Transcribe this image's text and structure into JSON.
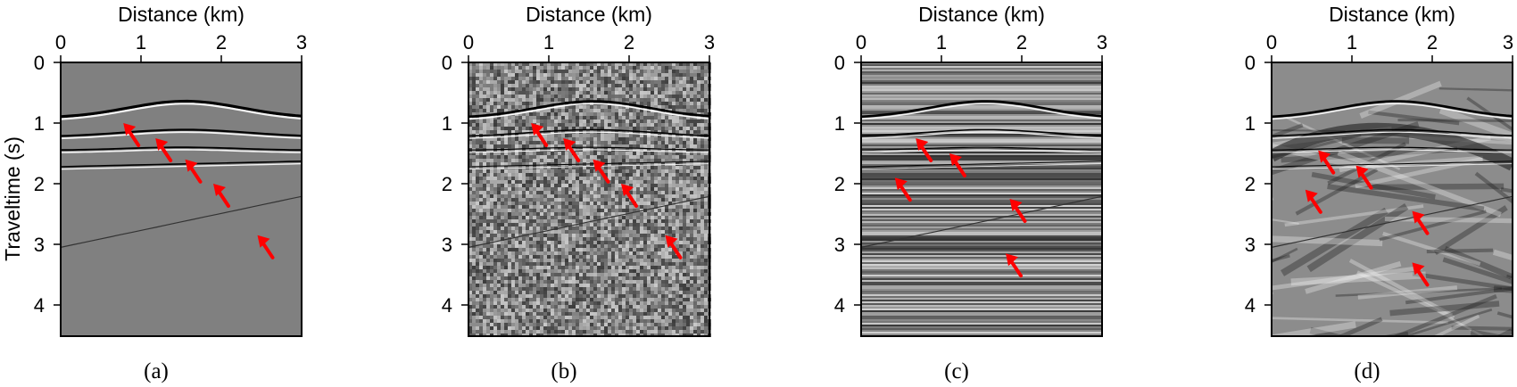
{
  "figure": {
    "x_axis_title": "Distance (km)",
    "y_axis_title": "Traveltime (s)",
    "x_ticks": [
      "0",
      "1",
      "2",
      "3"
    ],
    "y_ticks": [
      "0",
      "1",
      "2",
      "3",
      "4"
    ],
    "x_range_km": [
      0,
      3
    ],
    "y_range_s": [
      0,
      4.5
    ],
    "panels": [
      {
        "caption": "(a)",
        "style": "clean",
        "background": "#808080",
        "arrows": [
          [
            0.78,
            1.0
          ],
          [
            1.18,
            1.25
          ],
          [
            1.55,
            1.6
          ],
          [
            1.9,
            2.0
          ],
          [
            2.45,
            2.85
          ]
        ]
      },
      {
        "caption": "(b)",
        "style": "noisy",
        "background": "#7a7a7a",
        "arrows": [
          [
            0.78,
            1.0
          ],
          [
            1.18,
            1.25
          ],
          [
            1.55,
            1.6
          ],
          [
            1.9,
            2.0
          ],
          [
            2.45,
            2.85
          ]
        ]
      },
      {
        "caption": "(c)",
        "style": "striped",
        "background": "#6e6e6e",
        "arrows": [
          [
            0.68,
            1.25
          ],
          [
            1.1,
            1.5
          ],
          [
            0.42,
            1.9
          ],
          [
            1.85,
            2.25
          ],
          [
            1.8,
            3.15
          ]
        ]
      },
      {
        "caption": "(d)",
        "style": "smeared",
        "background": "#8c8c8c",
        "arrows": [
          [
            0.58,
            1.45
          ],
          [
            1.05,
            1.7
          ],
          [
            0.42,
            2.1
          ],
          [
            1.75,
            2.45
          ],
          [
            1.75,
            3.3
          ]
        ]
      }
    ],
    "arrow_color": "#ff0000"
  }
}
